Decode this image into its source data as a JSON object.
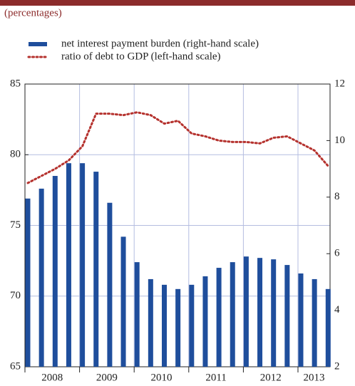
{
  "chart_data": {
    "type": "bar_line",
    "subtitle": "(percentages)",
    "year_labels": [
      "2008",
      "2009",
      "2010",
      "2011",
      "2012",
      "2013"
    ],
    "series": [
      {
        "name": "net interest payment burden (right-hand scale)",
        "color": "#1f4e9c",
        "axis": "y2",
        "values": [
          7.95,
          8.3,
          8.75,
          9.2,
          9.2,
          8.9,
          7.8,
          6.6,
          5.7,
          5.1,
          4.9,
          4.75,
          4.9,
          5.2,
          5.5,
          5.7,
          5.9,
          5.85,
          5.8,
          5.6,
          5.3,
          5.1,
          4.75
        ]
      },
      {
        "name": "ratio of debt to GDP (left-hand scale)",
        "color": "#b5322e",
        "axis": "y",
        "values": [
          78.0,
          78.5,
          79.0,
          79.6,
          80.6,
          82.9,
          82.9,
          82.8,
          83.0,
          82.8,
          82.2,
          82.4,
          81.5,
          81.3,
          81.0,
          80.9,
          80.9,
          80.8,
          81.2,
          81.3,
          80.8,
          80.3,
          79.2
        ]
      }
    ],
    "ylim": [
      65,
      85
    ],
    "yticks": [
      65,
      70,
      75,
      80,
      85
    ],
    "y2lim": [
      2,
      12
    ],
    "y2ticks": [
      2,
      4,
      6,
      8,
      10,
      12
    ],
    "grid": true
  }
}
